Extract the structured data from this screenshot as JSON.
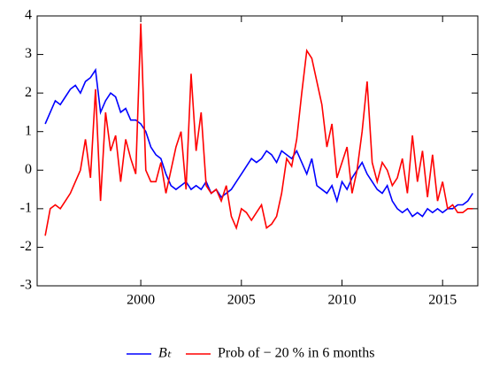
{
  "chart_data": {
    "type": "line",
    "x": [
      1995.25,
      1995.5,
      1995.75,
      1996,
      1996.25,
      1996.5,
      1996.75,
      1997,
      1997.25,
      1997.5,
      1997.75,
      1998,
      1998.25,
      1998.5,
      1998.75,
      1999,
      1999.25,
      1999.5,
      1999.75,
      2000,
      2000.25,
      2000.5,
      2000.75,
      2001,
      2001.25,
      2001.5,
      2001.75,
      2002,
      2002.25,
      2002.5,
      2002.75,
      2003,
      2003.25,
      2003.5,
      2003.75,
      2004,
      2004.25,
      2004.5,
      2004.75,
      2005,
      2005.25,
      2005.5,
      2005.75,
      2006,
      2006.25,
      2006.5,
      2006.75,
      2007,
      2007.25,
      2007.5,
      2007.75,
      2008,
      2008.25,
      2008.5,
      2008.75,
      2009,
      2009.25,
      2009.5,
      2009.75,
      2010,
      2010.25,
      2010.5,
      2010.75,
      2011,
      2011.25,
      2011.5,
      2011.75,
      2012,
      2012.25,
      2012.5,
      2012.75,
      2013,
      2013.25,
      2013.5,
      2013.75,
      2014,
      2014.25,
      2014.5,
      2014.75,
      2015,
      2015.25,
      2015.5,
      2015.75,
      2016,
      2016.25,
      2016.5
    ],
    "series": [
      {
        "name": "Bₜ",
        "color": "#0000ff",
        "values": [
          1.2,
          1.5,
          1.8,
          1.7,
          1.9,
          2.1,
          2.2,
          2.0,
          2.3,
          2.4,
          2.6,
          1.5,
          1.8,
          2.0,
          1.9,
          1.5,
          1.6,
          1.3,
          1.3,
          1.2,
          1.0,
          0.6,
          0.4,
          0.3,
          -0.1,
          -0.4,
          -0.5,
          -0.4,
          -0.3,
          -0.5,
          -0.4,
          -0.5,
          -0.3,
          -0.6,
          -0.5,
          -0.7,
          -0.6,
          -0.5,
          -0.3,
          -0.1,
          0.1,
          0.3,
          0.2,
          0.3,
          0.5,
          0.4,
          0.2,
          0.5,
          0.4,
          0.3,
          0.5,
          0.2,
          -0.1,
          0.3,
          -0.4,
          -0.5,
          -0.6,
          -0.4,
          -0.8,
          -0.3,
          -0.5,
          -0.2,
          0.0,
          0.2,
          -0.1,
          -0.3,
          -0.5,
          -0.6,
          -0.4,
          -0.8,
          -1.0,
          -1.1,
          -1.0,
          -1.2,
          -1.1,
          -1.2,
          -1.0,
          -1.1,
          -1.0,
          -1.1,
          -1.0,
          -1.0,
          -0.9,
          -0.9,
          -0.8,
          -0.6
        ]
      },
      {
        "name": "Prob of − 20 % in 6 months",
        "color": "#ff0000",
        "values": [
          -1.7,
          -1.0,
          -0.9,
          -1.0,
          -0.8,
          -0.6,
          -0.3,
          0.0,
          0.8,
          -0.2,
          2.1,
          -0.8,
          1.5,
          0.5,
          0.9,
          -0.3,
          0.8,
          0.3,
          -0.1,
          3.8,
          0.0,
          -0.3,
          -0.3,
          0.2,
          -0.6,
          0.0,
          0.6,
          1.0,
          -0.5,
          2.5,
          0.5,
          1.5,
          -0.4,
          -0.6,
          -0.5,
          -0.8,
          -0.4,
          -1.2,
          -1.5,
          -1.0,
          -1.1,
          -1.3,
          -1.1,
          -0.9,
          -1.5,
          -1.4,
          -1.2,
          -0.6,
          0.3,
          0.1,
          0.8,
          2.0,
          3.1,
          2.9,
          2.3,
          1.7,
          0.6,
          1.2,
          -0.2,
          0.2,
          0.6,
          -0.6,
          0.0,
          1.0,
          2.3,
          0.2,
          -0.3,
          0.2,
          0.0,
          -0.4,
          -0.2,
          0.3,
          -0.6,
          0.9,
          -0.3,
          0.5,
          -0.7,
          0.4,
          -0.8,
          -0.3,
          -1.0,
          -0.9,
          -1.1,
          -1.1,
          -1.0,
          -1.0
        ]
      }
    ],
    "xlim": [
      1994.85,
      2016.75
    ],
    "xticks": [
      2000,
      2005,
      2010,
      2015
    ],
    "ylim": [
      -3,
      4
    ],
    "yticks": [
      -3,
      -2,
      -1,
      0,
      1,
      2,
      3,
      4
    ],
    "grid": false,
    "legend": "bottom"
  }
}
